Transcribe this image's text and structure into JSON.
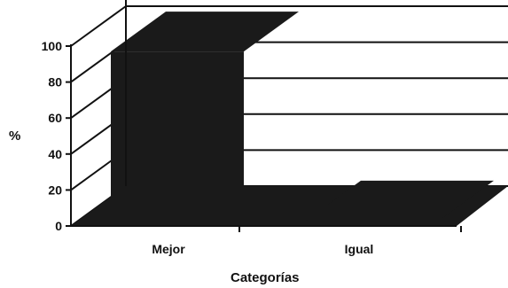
{
  "chart_data": {
    "type": "bar",
    "title": "",
    "xlabel": "Categorías",
    "ylabel": "%",
    "categories": [
      "Mejor",
      "Igual"
    ],
    "values": [
      97,
      3
    ],
    "ylim": [
      0,
      100
    ],
    "yticks": [
      "0",
      "20",
      "40",
      "60",
      "80",
      "100"
    ],
    "grid": true,
    "three_d": true,
    "colors": {
      "bar": "#1a1a1a",
      "grid": "#111111",
      "background": "#ffffff"
    }
  }
}
